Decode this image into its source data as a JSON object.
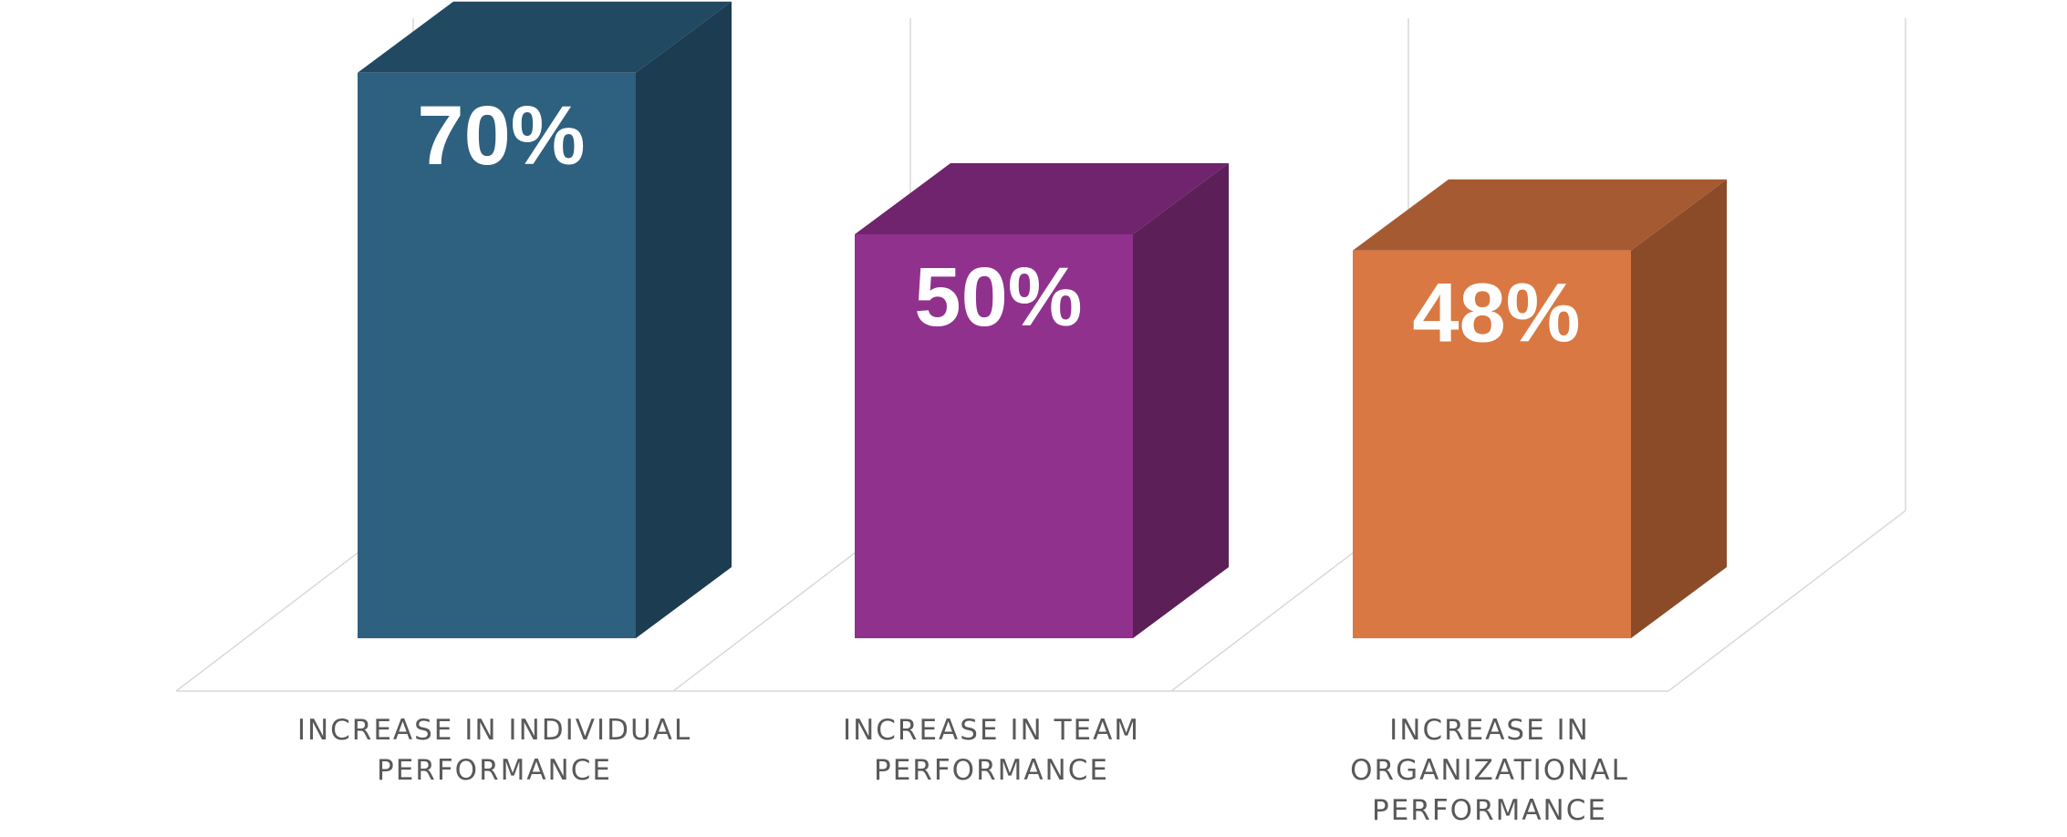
{
  "chart_data": {
    "type": "bar",
    "categories": [
      "INCREASE IN INDIVIDUAL\nPERFORMANCE",
      "INCREASE IN TEAM\nPERFORMANCE",
      "INCREASE IN\nORGANIZATIONAL\nPERFORMANCE"
    ],
    "values": [
      70,
      50,
      48
    ],
    "value_labels": [
      "70%",
      "50%",
      "48%"
    ],
    "colors": [
      {
        "front": "#2e607f",
        "top": "#224962",
        "side": "#1c3c51"
      },
      {
        "front": "#90318d",
        "top": "#70246d",
        "side": "#5c1f58"
      },
      {
        "front": "#d97842",
        "top": "#a65a31",
        "side": "#8b4b29"
      }
    ],
    "title": "",
    "xlabel": "",
    "ylabel": "",
    "ylim": [
      0,
      70
    ],
    "grid": true
  }
}
